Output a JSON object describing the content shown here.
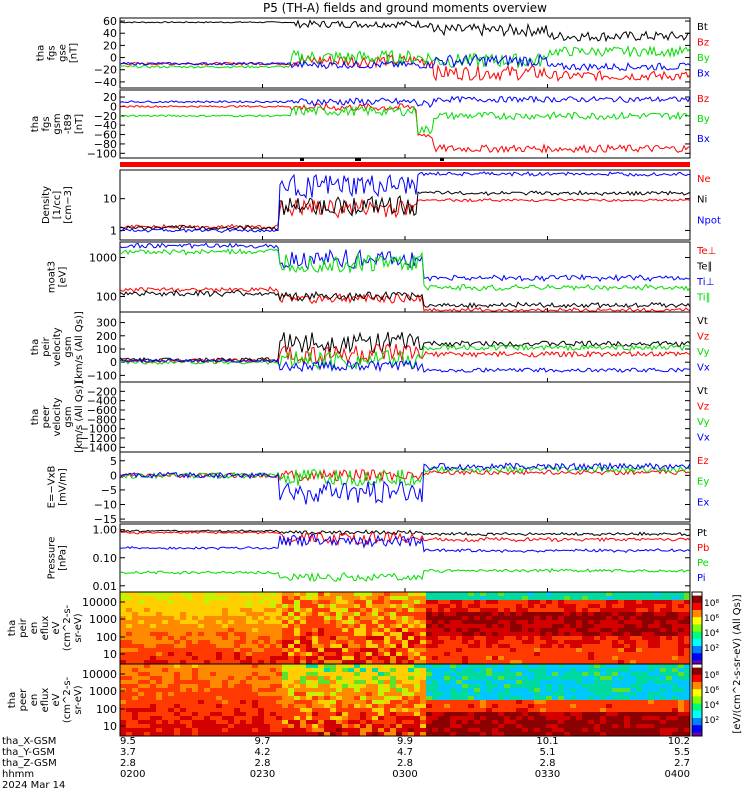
{
  "title": "P5 (TH-A) fields and ground moments overview",
  "colors": {
    "black": "#000000",
    "red": "#ff0000",
    "green": "#00dd00",
    "blue": "#0000ff",
    "white": "#ffffff"
  },
  "chart_data": {
    "type": "line",
    "x_axis": {
      "rows": [
        {
          "label": "tha_X-GSM",
          "values": [
            "9.5",
            "9.7",
            "9.9",
            "10.1",
            "10.2"
          ]
        },
        {
          "label": "tha_Y-GSM",
          "values": [
            "3.7",
            "4.2",
            "4.7",
            "5.1",
            "5.5"
          ]
        },
        {
          "label": "tha_Z-GSM",
          "values": [
            "2.8",
            "2.8",
            "2.8",
            "2.8",
            "2.7"
          ]
        },
        {
          "label": "hhmm",
          "values": [
            "0200",
            "0230",
            "0300",
            "0330",
            "0400"
          ]
        }
      ],
      "date": "2024 Mar 14",
      "range": [
        "0200",
        "0400"
      ]
    },
    "panels": [
      {
        "id": "fgs-gse",
        "ylabel": [
          "tha",
          "fgs",
          "gse",
          "[nT]"
        ],
        "yticks": [
          "60",
          "40",
          "20",
          "0",
          "−20",
          "−40"
        ],
        "ylim": [
          -50,
          65
        ],
        "scale": "linear",
        "series": [
          {
            "name": "Bt",
            "color": "black"
          },
          {
            "name": "Bz",
            "color": "red"
          },
          {
            "name": "By",
            "color": "green"
          },
          {
            "name": "Bx",
            "color": "blue"
          }
        ]
      },
      {
        "id": "fgs-gsm",
        "ylabel": [
          "tha",
          "fgs",
          "gsm",
          "-t89",
          "[nT]"
        ],
        "yticks": [
          "20",
          "0",
          "−20",
          "−40",
          "−60",
          "−80",
          "−100"
        ],
        "ylim": [
          -110,
          35
        ],
        "scale": "linear",
        "series": [
          {
            "name": "Bz",
            "color": "red"
          },
          {
            "name": "By",
            "color": "green"
          },
          {
            "name": "Bx",
            "color": "blue"
          }
        ]
      },
      {
        "id": "density",
        "ylabel": [
          "Density",
          "[1/cc]",
          "[cm−3]"
        ],
        "yticks": [
          "10",
          "1"
        ],
        "ylim": [
          0.5,
          80
        ],
        "scale": "log",
        "series": [
          {
            "name": "Ne",
            "color": "red"
          },
          {
            "name": "Ni",
            "color": "black"
          },
          {
            "name": "Npot",
            "color": "blue"
          }
        ]
      },
      {
        "id": "temperature",
        "ylabel": [
          "moat3",
          "[eV]"
        ],
        "yticks": [
          "1000",
          "100"
        ],
        "ylim": [
          40,
          2500
        ],
        "scale": "log",
        "series": [
          {
            "name": "Te⊥",
            "color": "red"
          },
          {
            "name": "Te∥",
            "color": "black"
          },
          {
            "name": "Ti⊥",
            "color": "blue"
          },
          {
            "name": "Ti∥",
            "color": "green"
          }
        ]
      },
      {
        "id": "peir-velocity",
        "ylabel": [
          "tha",
          "peir",
          "velocity",
          "gsm",
          "[km/s (All Qs)]"
        ],
        "yticks": [
          "300",
          "200",
          "100",
          "0",
          "−100"
        ],
        "ylim": [
          -150,
          380
        ],
        "scale": "linear",
        "series": [
          {
            "name": "Vt",
            "color": "black"
          },
          {
            "name": "Vz",
            "color": "red"
          },
          {
            "name": "Vy",
            "color": "green"
          },
          {
            "name": "Vx",
            "color": "blue"
          }
        ]
      },
      {
        "id": "peer-velocity",
        "ylabel": [
          "tha",
          "peer",
          "velocity",
          "gsm",
          "[km/s (All Qs)]"
        ],
        "yticks": [
          "−200",
          "−400",
          "−600",
          "−800",
          "−1000",
          "−1200",
          "−1400"
        ],
        "ylim": [
          -1500,
          0
        ],
        "scale": "linear",
        "series": [
          {
            "name": "Vt",
            "color": "black"
          },
          {
            "name": "Vz",
            "color": "red"
          },
          {
            "name": "Vy",
            "color": "green"
          },
          {
            "name": "Vx",
            "color": "blue"
          }
        ]
      },
      {
        "id": "e-field",
        "ylabel": [
          "E=−VxB",
          "[mV/m]"
        ],
        "yticks": [
          "5",
          "0",
          "−5",
          "−10",
          "−15"
        ],
        "ylim": [
          -16,
          8
        ],
        "scale": "linear",
        "series": [
          {
            "name": "Ez",
            "color": "red"
          },
          {
            "name": "Ey",
            "color": "green"
          },
          {
            "name": "Ex",
            "color": "blue"
          }
        ]
      },
      {
        "id": "pressure",
        "ylabel": [
          "Pressure",
          "[nPa]"
        ],
        "yticks": [
          "1.00",
          "0.10",
          "0.01"
        ],
        "ylim": [
          0.006,
          1.6
        ],
        "scale": "log",
        "series": [
          {
            "name": "Pt",
            "color": "black"
          },
          {
            "name": "Pb",
            "color": "red"
          },
          {
            "name": "Pe",
            "color": "green"
          },
          {
            "name": "Pi",
            "color": "blue"
          }
        ]
      }
    ],
    "spectrograms": [
      {
        "id": "peir-eflux",
        "ylabel": [
          "tha",
          "peir",
          "en",
          "eflux",
          "eV",
          "(cm^2-s-",
          "sr-eV)"
        ],
        "yticks": [
          "10000",
          "1000",
          "100",
          "10"
        ],
        "scale": "log"
      },
      {
        "id": "peer-eflux",
        "ylabel": [
          "tha",
          "peer",
          "en",
          "eflux",
          "eV",
          "(cm^2-s-",
          "sr-eV)"
        ],
        "yticks": [
          "10000",
          "1000",
          "100",
          "10"
        ],
        "scale": "log"
      }
    ],
    "colorbar": {
      "ticks": [
        "10⁸",
        "10⁶",
        "10⁴",
        "10²",
        "10⁸",
        "10⁶",
        "10⁴",
        "10²"
      ],
      "label": "[eV/(cm^2-s-sr-eV) (All Qs)]"
    },
    "time_markers": {
      "red_bar": true
    }
  }
}
